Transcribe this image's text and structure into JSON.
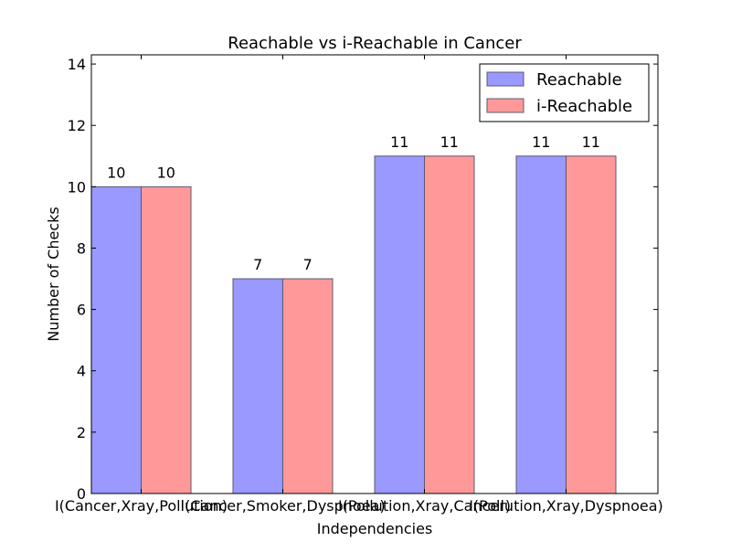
{
  "chart_data": {
    "type": "bar",
    "title": "Reachable vs i-Reachable in Cancer",
    "xlabel": "Independencies",
    "ylabel": "Number of Checks",
    "categories": [
      "I(Cancer,Xray,Pollution)",
      "I(Cancer,Smoker,Dyspnoea)",
      "I(Pollution,Xray,Cancer)",
      "I(Pollution,Xray,Dyspnoea)"
    ],
    "series": [
      {
        "name": "Reachable",
        "values": [
          10,
          7,
          11,
          11
        ],
        "color": "#9999ff"
      },
      {
        "name": "i-Reachable",
        "values": [
          10,
          7,
          11,
          11
        ],
        "color": "#ff9999"
      }
    ],
    "ylim": [
      0,
      14.3
    ],
    "yticks": [
      0,
      2,
      4,
      6,
      8,
      10,
      12,
      14
    ],
    "legend_position": "top-right",
    "grid": false
  }
}
